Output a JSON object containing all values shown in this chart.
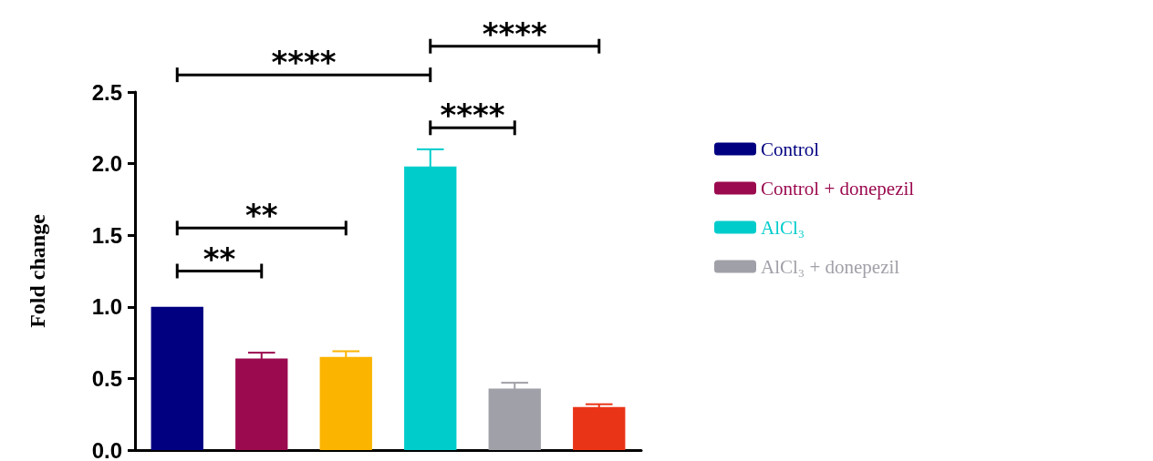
{
  "chart_data": {
    "type": "bar",
    "ylabel": "Fold change",
    "categories": [
      null,
      null,
      null,
      null,
      null,
      null
    ],
    "series": [
      {
        "name": "Control",
        "color": "#000080",
        "values": [
          1.0,
          null,
          null,
          null,
          null,
          null
        ],
        "errors": [
          null,
          null,
          null,
          null,
          null,
          null
        ]
      },
      {
        "name": "Control + donepezil",
        "color": "#9b0a4f",
        "values": [
          null,
          0.64,
          null,
          null,
          null,
          null
        ],
        "errors": [
          null,
          0.04,
          null,
          null,
          null,
          null
        ]
      },
      {
        "color": "#fbb400",
        "values": [
          null,
          null,
          0.65,
          null,
          null,
          null
        ],
        "errors": [
          null,
          null,
          0.04,
          null,
          null,
          null
        ]
      },
      {
        "name": "AlCl₃",
        "color": "#00cccc",
        "values": [
          null,
          null,
          null,
          1.98,
          null,
          null
        ],
        "errors": [
          null,
          null,
          null,
          0.12,
          null,
          null
        ]
      },
      {
        "name": "AlCl₃ + donepezil",
        "color": "#a0a0a8",
        "values": [
          null,
          null,
          null,
          null,
          0.43,
          null
        ],
        "errors": [
          null,
          null,
          null,
          null,
          0.04,
          null
        ]
      },
      {
        "color": "#ea3417",
        "values": [
          null,
          null,
          null,
          null,
          null,
          0.3
        ],
        "errors": [
          null,
          null,
          null,
          null,
          null,
          0.02
        ]
      }
    ],
    "ylim": [
      0,
      2.5
    ],
    "yticks": [
      {
        "value": 0,
        "label": "0.0"
      },
      {
        "value": 0.5,
        "label": "0.5"
      },
      {
        "value": 1,
        "label": "1.0"
      },
      {
        "value": 1.5,
        "label": "1.5"
      },
      {
        "value": 2,
        "label": "2.0"
      },
      {
        "value": 2.5,
        "label": "2.5"
      }
    ],
    "annotations": [
      "**",
      "**",
      "****",
      "****",
      "****"
    ],
    "legend": "right",
    "stacked": true,
    "grid": false,
    "tick_labels": "y"
  }
}
